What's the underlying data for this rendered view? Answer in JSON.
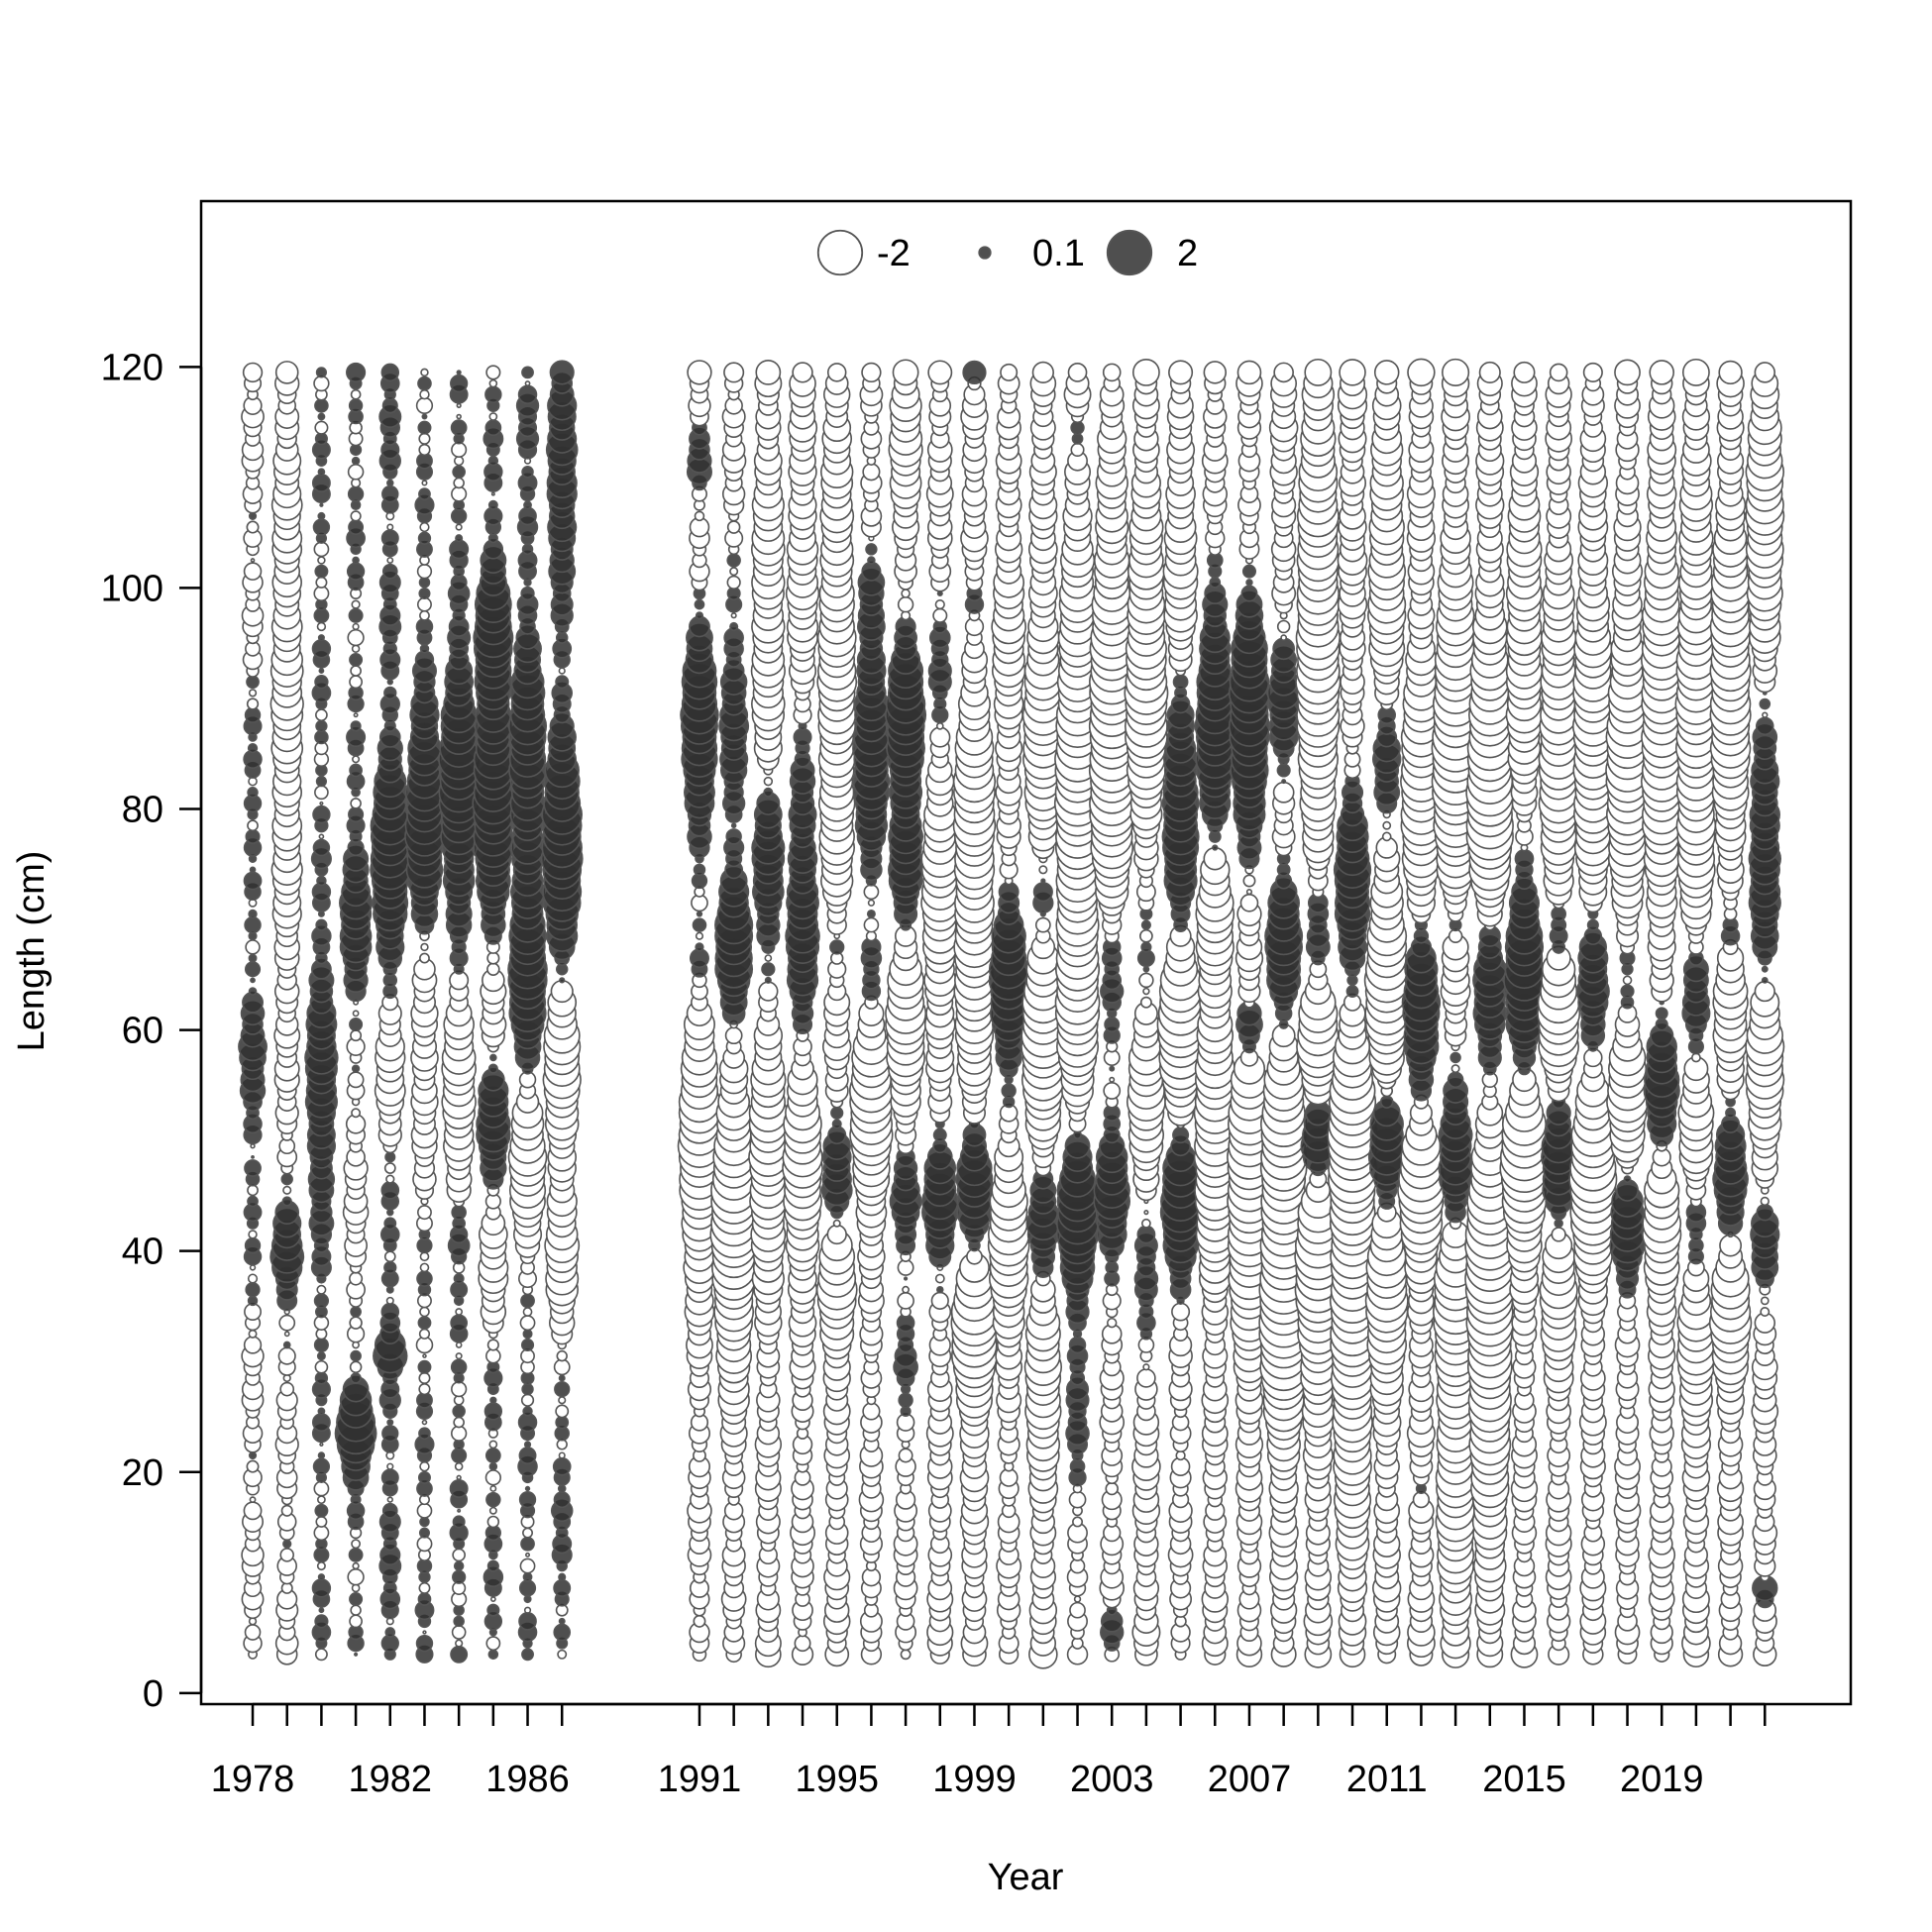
{
  "chart_data": {
    "type": "scatter",
    "subtype": "bubble",
    "xlabel": "Year",
    "ylabel": "Length (cm)",
    "xlim": [
      1976.5,
      2024.5
    ],
    "ylim": [
      -1,
      135
    ],
    "x_ticks": [
      1978,
      1979,
      1980,
      1981,
      1982,
      1983,
      1984,
      1985,
      1986,
      1987,
      1991,
      1992,
      1993,
      1994,
      1995,
      1996,
      1997,
      1998,
      1999,
      2000,
      2001,
      2002,
      2003,
      2004,
      2005,
      2006,
      2007,
      2008,
      2009,
      2010,
      2011,
      2012,
      2013,
      2014,
      2015,
      2016,
      2017,
      2018,
      2019,
      2020,
      2021,
      2022
    ],
    "x_tick_labels": [
      "1978",
      "1982",
      "1986",
      "1991",
      "1995",
      "1999",
      "2003",
      "2007",
      "2011",
      "2015",
      "2019"
    ],
    "y_ticks": [
      0,
      20,
      40,
      60,
      80,
      100,
      120
    ],
    "y_tick_labels": [
      "0",
      "20",
      "40",
      "60",
      "80",
      "100",
      "120"
    ],
    "length_bins": {
      "start": 3.5,
      "end": 119.5,
      "step": 1
    },
    "legend": {
      "placement": "top",
      "items": [
        {
          "label": "-2",
          "value": -2
        },
        {
          "label": "0.1",
          "value": 0.1
        },
        {
          "label": "2",
          "value": 2
        }
      ]
    },
    "colors": {
      "positive_fill": "#303030",
      "negative_fill": "#ffffff",
      "stroke": "#555555"
    },
    "years": [
      1978,
      1979,
      1980,
      1981,
      1982,
      1983,
      1984,
      1985,
      1986,
      1987,
      1991,
      1992,
      1993,
      1994,
      1995,
      1996,
      1997,
      1998,
      1999,
      2000,
      2001,
      2002,
      2003,
      2004,
      2005,
      2006,
      2007,
      2008,
      2009,
      2010,
      2011,
      2012,
      2013,
      2014,
      2015,
      2016,
      2017,
      2018,
      2019,
      2020,
      2021,
      2022
    ],
    "series": [
      {
        "year": 1978,
        "base": -0.22,
        "features": [
          [
            59,
            4,
            0.8
          ],
          [
            45,
            6,
            0.4
          ],
          [
            80,
            8,
            0.4
          ]
        ]
      },
      {
        "year": 1979,
        "base": -0.22,
        "features": [
          [
            40,
            3,
            1.3
          ],
          [
            90,
            20,
            -0.6
          ]
        ]
      },
      {
        "year": 1980,
        "base": 0.06,
        "features": [
          [
            55,
            8,
            0.8
          ]
        ]
      },
      {
        "year": 1981,
        "base": 0.05,
        "features": [
          [
            24,
            2.5,
            1.6
          ],
          [
            70,
            5,
            0.8
          ],
          [
            45,
            10,
            -0.4
          ]
        ]
      },
      {
        "year": 1982,
        "base": 0.18,
        "features": [
          [
            75,
            6,
            1.3
          ],
          [
            57,
            6,
            -0.9
          ],
          [
            31,
            1,
            0.8
          ]
        ]
      },
      {
        "year": 1983,
        "base": 0.05,
        "features": [
          [
            79,
            7,
            1.4
          ],
          [
            58,
            9,
            -0.7
          ]
        ]
      },
      {
        "year": 1984,
        "base": 0.05,
        "features": [
          [
            82,
            8,
            1.4
          ],
          [
            54,
            7,
            -1.1
          ],
          [
            42,
            2,
            0.6
          ]
        ]
      },
      {
        "year": 1985,
        "base": 0.08,
        "features": [
          [
            81,
            10,
            1.4
          ],
          [
            62,
            5,
            -1.0
          ],
          [
            52,
            4,
            1.2
          ],
          [
            40,
            5,
            -0.8
          ],
          [
            97,
            4,
            0.8
          ]
        ]
      },
      {
        "year": 1986,
        "base": 0.08,
        "features": [
          [
            64,
            5,
            1.4
          ],
          [
            84,
            8,
            1.2
          ],
          [
            48,
            6,
            -1.3
          ],
          [
            115,
            2,
            0.4
          ]
        ]
      },
      {
        "year": 1987,
        "base": 0.15,
        "features": [
          [
            75,
            7,
            1.6
          ],
          [
            57,
            8,
            -1.4
          ],
          [
            38,
            5,
            -1.0
          ],
          [
            110,
            6,
            0.7
          ]
        ]
      },
      {
        "year": 1991,
        "base": -0.3,
        "features": [
          [
            87,
            7,
            1.6
          ],
          [
            50,
            9,
            -1.3
          ],
          [
            66,
            3,
            0.8
          ],
          [
            112,
            2,
            0.8
          ]
        ]
      },
      {
        "year": 1992,
        "base": -0.3,
        "features": [
          [
            67,
            5,
            1.6
          ],
          [
            42,
            9,
            -1.7
          ],
          [
            88,
            8,
            0.9
          ]
        ]
      },
      {
        "year": 1993,
        "base": -0.4,
        "features": [
          [
            75,
            6,
            1.5
          ],
          [
            48,
            7,
            -1.0
          ],
          [
            95,
            12,
            -0.6
          ]
        ]
      },
      {
        "year": 1994,
        "base": -0.3,
        "features": [
          [
            67,
            6,
            1.4
          ],
          [
            48,
            8,
            -1.1
          ],
          [
            82,
            5,
            1.0
          ],
          [
            100,
            12,
            -0.5
          ]
        ]
      },
      {
        "year": 1995,
        "base": -0.4,
        "features": [
          [
            46,
            4,
            1.3
          ],
          [
            37,
            4,
            -1.2
          ],
          [
            68,
            3,
            0.6
          ],
          [
            90,
            15,
            -0.9
          ]
        ]
      },
      {
        "year": 1996,
        "base": -0.3,
        "features": [
          [
            85,
            7,
            1.6
          ],
          [
            53,
            7,
            -1.4
          ],
          [
            65,
            3,
            0.9
          ],
          [
            100,
            3,
            0.7
          ]
        ]
      },
      {
        "year": 1997,
        "base": -0.3,
        "features": [
          [
            88,
            6,
            1.7
          ],
          [
            75,
            4,
            1.2
          ],
          [
            45,
            3,
            1.2
          ],
          [
            60,
            5,
            -1.2
          ],
          [
            30,
            3,
            0.8
          ],
          [
            112,
            6,
            -0.6
          ]
        ]
      },
      {
        "year": 1998,
        "base": -0.4,
        "features": [
          [
            44,
            4,
            1.6
          ],
          [
            92,
            4,
            0.9
          ],
          [
            72,
            8,
            -0.8
          ]
        ]
      },
      {
        "year": 1999,
        "base": -0.5,
        "features": [
          [
            46,
            5,
            1.9
          ],
          [
            33,
            5,
            -1.6
          ],
          [
            62,
            8,
            -1.0
          ],
          [
            80,
            6,
            -1.1
          ],
          [
            119.5,
            0.8,
            1.2
          ],
          [
            99,
            2,
            0.7
          ]
        ]
      },
      {
        "year": 2000,
        "base": -0.3,
        "features": [
          [
            64,
            5,
            1.8
          ],
          [
            40,
            5,
            -1.3
          ],
          [
            95,
            8,
            -0.6
          ]
        ]
      },
      {
        "year": 2001,
        "base": -0.5,
        "features": [
          [
            42,
            4,
            1.6
          ],
          [
            72,
            4,
            1.4
          ],
          [
            60,
            7,
            -1.3
          ],
          [
            85,
            8,
            -1.0
          ],
          [
            30,
            6,
            -0.8
          ]
        ]
      },
      {
        "year": 2002,
        "base": -0.3,
        "features": [
          [
            44,
            5,
            2.0
          ],
          [
            27,
            8,
            0.6
          ],
          [
            80,
            16,
            -1.6
          ],
          [
            114,
            1,
            0.8
          ],
          [
            60,
            4,
            -0.8
          ]
        ]
      },
      {
        "year": 2003,
        "base": -0.3,
        "features": [
          [
            45,
            4,
            1.6
          ],
          [
            65,
            6,
            1.3
          ],
          [
            85,
            15,
            -1.7
          ],
          [
            6,
            1,
            1.0
          ]
        ]
      },
      {
        "year": 2004,
        "base": -0.5,
        "features": [
          [
            38,
            5,
            1.0
          ],
          [
            68,
            8,
            0.8
          ],
          [
            90,
            10,
            -1.2
          ],
          [
            55,
            6,
            -0.9
          ]
        ]
      },
      {
        "year": 2005,
        "base": -0.3,
        "features": [
          [
            45,
            5,
            1.9
          ],
          [
            80,
            9,
            1.6
          ],
          [
            60,
            6,
            -1.9
          ],
          [
            100,
            8,
            -0.8
          ]
        ]
      },
      {
        "year": 2006,
        "base": -0.4,
        "features": [
          [
            88,
            8,
            1.8
          ],
          [
            50,
            8,
            -1.3
          ],
          [
            70,
            4,
            -1.1
          ]
        ]
      },
      {
        "year": 2007,
        "base": -0.4,
        "features": [
          [
            88,
            8,
            2.0
          ],
          [
            60,
            2,
            1.4
          ],
          [
            45,
            10,
            -1.5
          ]
        ]
      },
      {
        "year": 2008,
        "base": -0.5,
        "features": [
          [
            67,
            5,
            1.8
          ],
          [
            35,
            8,
            -1.9
          ],
          [
            52,
            5,
            -1.3
          ],
          [
            90,
            5,
            1.3
          ]
        ]
      },
      {
        "year": 2009,
        "base": -0.5,
        "features": [
          [
            50,
            3,
            1.9
          ],
          [
            69,
            5,
            1.3
          ],
          [
            38,
            7,
            -1.5
          ],
          [
            60,
            4,
            -1.3
          ],
          [
            95,
            15,
            -1.3
          ]
        ]
      },
      {
        "year": 2010,
        "base": -0.6,
        "features": [
          [
            72,
            8,
            1.8
          ],
          [
            51,
            8,
            -1.6
          ],
          [
            30,
            10,
            -1.1
          ]
        ]
      },
      {
        "year": 2011,
        "base": -0.5,
        "features": [
          [
            49,
            4,
            1.8
          ],
          [
            84,
            5,
            1.2
          ],
          [
            64,
            6,
            -1.3
          ],
          [
            36,
            5,
            -1.3
          ],
          [
            100,
            8,
            -0.8
          ]
        ]
      },
      {
        "year": 2012,
        "base": -0.5,
        "features": [
          [
            62,
            7,
            1.8
          ],
          [
            46,
            4,
            -1.8
          ],
          [
            80,
            8,
            -1.2
          ],
          [
            19,
            1,
            0.6
          ]
        ]
      },
      {
        "year": 2013,
        "base": -0.5,
        "features": [
          [
            47,
            6,
            1.9
          ],
          [
            70,
            2,
            1.0
          ],
          [
            38,
            5,
            -1.6
          ],
          [
            85,
            10,
            -1.6
          ],
          [
            20,
            10,
            -0.9
          ]
        ]
      },
      {
        "year": 2014,
        "base": -0.5,
        "features": [
          [
            64,
            6,
            2.0
          ],
          [
            38,
            8,
            -1.9
          ],
          [
            80,
            10,
            -1.7
          ],
          [
            20,
            6,
            -0.8
          ]
        ]
      },
      {
        "year": 2015,
        "base": -0.4,
        "features": [
          [
            65,
            7,
            1.9
          ],
          [
            48,
            5,
            -2.0
          ],
          [
            95,
            10,
            -0.8
          ]
        ]
      },
      {
        "year": 2016,
        "base": -0.4,
        "features": [
          [
            47,
            5,
            1.8
          ],
          [
            69,
            2,
            1.1
          ],
          [
            60,
            4,
            -1.3
          ],
          [
            38,
            5,
            -1.2
          ],
          [
            85,
            10,
            -1.0
          ]
        ]
      },
      {
        "year": 2017,
        "base": -0.4,
        "features": [
          [
            64,
            6,
            1.5
          ],
          [
            47,
            6,
            -1.8
          ],
          [
            85,
            12,
            -1.1
          ]
        ]
      },
      {
        "year": 2018,
        "base": -0.4,
        "features": [
          [
            42,
            4,
            1.5
          ],
          [
            65,
            5,
            1.0
          ],
          [
            55,
            5,
            -1.2
          ],
          [
            82,
            10,
            -1.3
          ]
        ]
      },
      {
        "year": 2019,
        "base": -0.4,
        "features": [
          [
            55,
            5,
            1.5
          ],
          [
            42,
            5,
            -1.0
          ],
          [
            88,
            12,
            -1.2
          ]
        ]
      },
      {
        "year": 2020,
        "base": -0.5,
        "features": [
          [
            63,
            5,
            1.4
          ],
          [
            42,
            4,
            1.0
          ],
          [
            32,
            4,
            -1.0
          ],
          [
            50,
            4,
            -0.8
          ],
          [
            85,
            15,
            -1.0
          ]
        ]
      },
      {
        "year": 2021,
        "base": -0.4,
        "features": [
          [
            47,
            5,
            1.6
          ],
          [
            69,
            2,
            0.9
          ],
          [
            35,
            5,
            -1.2
          ],
          [
            60,
            5,
            -0.8
          ],
          [
            92,
            10,
            -1.2
          ]
        ]
      },
      {
        "year": 2022,
        "base": -0.4,
        "features": [
          [
            76,
            10,
            1.3
          ],
          [
            41,
            3,
            1.2
          ],
          [
            57,
            5,
            -1.2
          ],
          [
            105,
            8,
            -1.0
          ],
          [
            9.5,
            1,
            1.0
          ]
        ]
      }
    ]
  }
}
